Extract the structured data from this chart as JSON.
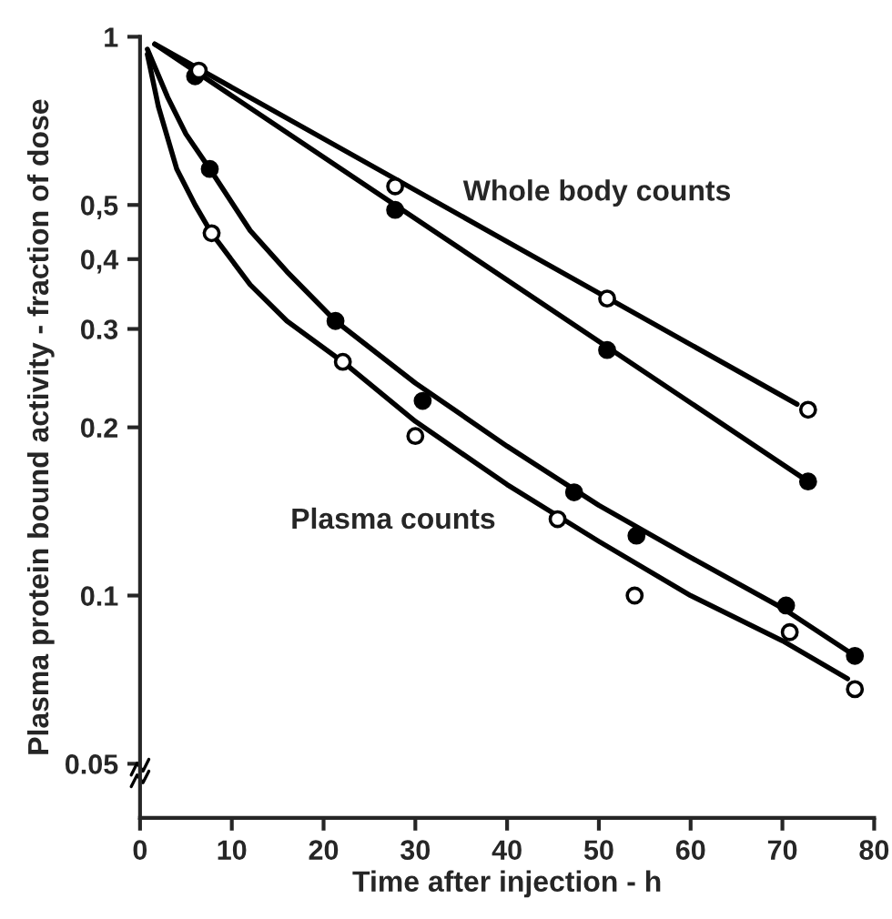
{
  "chart_data": {
    "type": "scatter",
    "xlabel": "Time after injection - h",
    "ylabel": "Plasma protein bound activity - fraction of dose",
    "log": "y",
    "xlim": [
      0,
      80
    ],
    "ylim": [
      0.04,
      1
    ],
    "xticks": [
      0,
      10,
      20,
      30,
      40,
      50,
      60,
      70,
      80
    ],
    "yticks": [
      0.05,
      0.1,
      0.2,
      0.3,
      {
        "value": 0.4,
        "label": "0,4"
      },
      {
        "value": 0.5,
        "label": "0,5"
      },
      1
    ],
    "series": [
      {
        "marker": "circle",
        "color": "#ffffff",
        "x": [
          6.4,
          27.8,
          50.9,
          72.8
        ],
        "values": [
          0.87,
          0.54,
          0.34,
          0.215
        ]
      },
      {
        "marker": "circle",
        "color": "#000000",
        "x": [
          6.0,
          27.8,
          50.9,
          72.8
        ],
        "values": [
          0.85,
          0.49,
          0.275,
          0.16
        ]
      },
      {
        "marker": "circle",
        "color": "#000000",
        "x": [
          7.6,
          21.3,
          30.8,
          47.3,
          54.1,
          70.4,
          77.9
        ],
        "values": [
          0.58,
          0.31,
          0.223,
          0.153,
          0.128,
          0.096,
          0.078
        ]
      },
      {
        "marker": "circle",
        "color": "#ffffff",
        "x": [
          7.8,
          22.1,
          30.0,
          45.5,
          53.9,
          70.8,
          77.9
        ],
        "values": [
          0.445,
          0.262,
          0.193,
          0.137,
          0.1,
          0.086,
          0.068
        ]
      },
      {
        "type": "line",
        "marker": "none",
        "color": "#000000",
        "x": [
          1.6,
          71.6
        ],
        "values": [
          0.97,
          0.22
        ]
      },
      {
        "type": "line",
        "marker": "none",
        "color": "#000000",
        "x": [
          1.6,
          72.8
        ],
        "values": [
          0.97,
          0.16
        ]
      },
      {
        "type": "line",
        "marker": "none",
        "color": "#000000",
        "x": [
          0.8,
          3,
          5,
          7.6,
          12,
          16,
          21.3,
          30,
          40,
          50,
          60,
          70,
          77.9
        ],
        "values": [
          0.95,
          0.78,
          0.67,
          0.58,
          0.45,
          0.38,
          0.31,
          0.24,
          0.185,
          0.145,
          0.117,
          0.095,
          0.078
        ]
      },
      {
        "type": "line",
        "marker": "none",
        "color": "#000000",
        "x": [
          0.8,
          2,
          4,
          6,
          7.8,
          12,
          16,
          22.1,
          30,
          40,
          50,
          60,
          70,
          77.1
        ],
        "values": [
          0.93,
          0.75,
          0.58,
          0.5,
          0.445,
          0.36,
          0.31,
          0.262,
          0.205,
          0.158,
          0.125,
          0.1,
          0.083,
          0.071
        ]
      }
    ],
    "annotations": [
      "Whole body counts",
      "Plasma counts"
    ]
  }
}
